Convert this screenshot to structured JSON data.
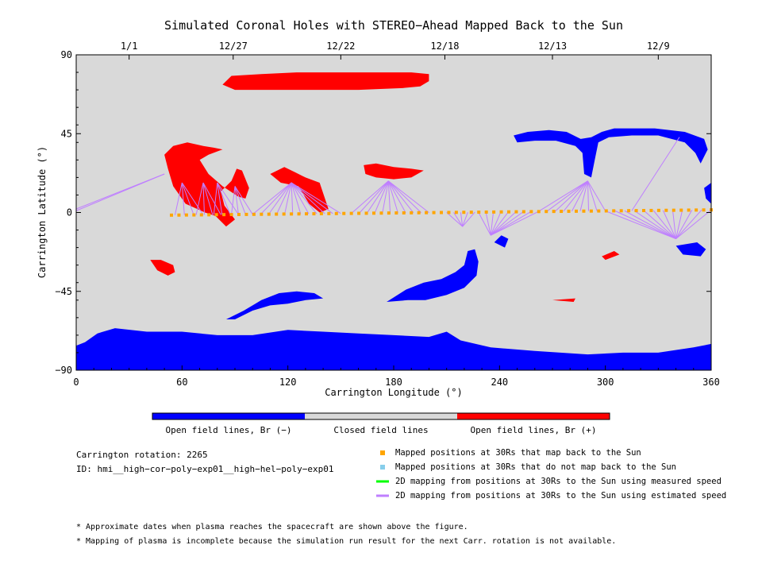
{
  "chart_data": {
    "type": "map",
    "title": "Simulated Coronal Holes with STEREO−Ahead Mapped Back to the Sun",
    "xlabel": "Carrington Longitude (°)",
    "ylabel": "Carrington Latitude (°)",
    "xlim": [
      0,
      360
    ],
    "ylim": [
      -90,
      90
    ],
    "x_ticks": [
      0,
      60,
      120,
      180,
      240,
      300,
      360
    ],
    "y_ticks": [
      -90,
      -45,
      0,
      45,
      90
    ],
    "y_tick_labels": [
      "−90",
      "−45",
      "0",
      "45",
      "90"
    ],
    "top_axis_dates": [
      {
        "lon": 30,
        "label": "1/1"
      },
      {
        "lon": 89,
        "label": "12/27"
      },
      {
        "lon": 150,
        "label": "12/22"
      },
      {
        "lon": 209,
        "label": "12/18"
      },
      {
        "lon": 270,
        "label": "12/13"
      },
      {
        "lon": 330,
        "label": "12/9"
      }
    ],
    "colors": {
      "open_negative": "#0000ff",
      "closed": "#d9d9d9",
      "open_positive": "#ff0000",
      "mapped_back": "#ffa500",
      "not_mapped": "#87ceeb",
      "measured_speed": "#00ff00",
      "estimated_speed": "#bf7fff"
    },
    "open_negative_regions": [
      [
        [
          0,
          -76
        ],
        [
          5,
          -74
        ],
        [
          12,
          -69
        ],
        [
          22,
          -66
        ],
        [
          40,
          -68
        ],
        [
          60,
          -68
        ],
        [
          80,
          -70
        ],
        [
          100,
          -70
        ],
        [
          120,
          -67
        ],
        [
          140,
          -68
        ],
        [
          160,
          -69
        ],
        [
          180,
          -70
        ],
        [
          200,
          -71
        ],
        [
          210,
          -68
        ],
        [
          218,
          -73
        ],
        [
          235,
          -77
        ],
        [
          260,
          -79
        ],
        [
          290,
          -81
        ],
        [
          310,
          -80
        ],
        [
          330,
          -80
        ],
        [
          350,
          -77
        ],
        [
          360,
          -75
        ],
        [
          360,
          -90
        ],
        [
          0,
          -90
        ]
      ],
      [
        [
          85,
          -61
        ],
        [
          95,
          -56
        ],
        [
          105,
          -50
        ],
        [
          115,
          -46
        ],
        [
          125,
          -45
        ],
        [
          135,
          -46
        ],
        [
          140,
          -49
        ],
        [
          130,
          -50
        ],
        [
          120,
          -52
        ],
        [
          110,
          -53
        ],
        [
          100,
          -56
        ],
        [
          90,
          -61
        ]
      ],
      [
        [
          176,
          -51
        ],
        [
          187,
          -44
        ],
        [
          197,
          -40
        ],
        [
          207,
          -38
        ],
        [
          215,
          -34
        ],
        [
          220,
          -30
        ],
        [
          222,
          -22
        ],
        [
          226,
          -21
        ],
        [
          228,
          -28
        ],
        [
          227,
          -36
        ],
        [
          220,
          -43
        ],
        [
          210,
          -47
        ],
        [
          198,
          -50
        ],
        [
          188,
          -50
        ]
      ],
      [
        [
          237,
          -17
        ],
        [
          241,
          -13
        ],
        [
          245,
          -15
        ],
        [
          243,
          -20
        ]
      ],
      [
        [
          340,
          -19
        ],
        [
          352,
          -17
        ],
        [
          357,
          -21
        ],
        [
          354,
          -25
        ],
        [
          344,
          -24
        ]
      ],
      [
        [
          248,
          44
        ],
        [
          256,
          46
        ],
        [
          268,
          47
        ],
        [
          278,
          46
        ],
        [
          286,
          42
        ],
        [
          292,
          43
        ],
        [
          298,
          46
        ],
        [
          305,
          48
        ],
        [
          315,
          48
        ],
        [
          328,
          48
        ],
        [
          345,
          46
        ],
        [
          356,
          42
        ],
        [
          358,
          36
        ],
        [
          354,
          28
        ],
        [
          351,
          34
        ],
        [
          345,
          40
        ],
        [
          330,
          44
        ],
        [
          315,
          44
        ],
        [
          302,
          43
        ],
        [
          296,
          40
        ],
        [
          294,
          30
        ],
        [
          292,
          20
        ],
        [
          288,
          22
        ],
        [
          287,
          34
        ],
        [
          283,
          38
        ],
        [
          272,
          41
        ],
        [
          260,
          41
        ],
        [
          250,
          40
        ]
      ],
      [
        [
          356,
          14
        ],
        [
          360,
          17
        ],
        [
          360,
          5
        ],
        [
          357,
          8
        ]
      ]
    ],
    "open_positive_regions": [
      [
        [
          83,
          73
        ],
        [
          88,
          78
        ],
        [
          105,
          79
        ],
        [
          125,
          80
        ],
        [
          150,
          80
        ],
        [
          170,
          80
        ],
        [
          190,
          80
        ],
        [
          200,
          79
        ],
        [
          200,
          75
        ],
        [
          195,
          72
        ],
        [
          185,
          71
        ],
        [
          160,
          70
        ],
        [
          140,
          70
        ],
        [
          120,
          70
        ],
        [
          105,
          70
        ],
        [
          90,
          70
        ]
      ],
      [
        [
          55,
          38
        ],
        [
          63,
          40
        ],
        [
          72,
          38
        ],
        [
          78,
          37
        ],
        [
          83,
          36
        ],
        [
          75,
          33
        ],
        [
          70,
          30
        ],
        [
          75,
          22
        ],
        [
          83,
          15
        ],
        [
          92,
          9
        ],
        [
          96,
          8
        ],
        [
          98,
          14
        ],
        [
          94,
          24
        ],
        [
          91,
          25
        ],
        [
          88,
          18
        ],
        [
          82,
          12
        ],
        [
          84,
          4
        ],
        [
          90,
          -4
        ],
        [
          85,
          -8
        ],
        [
          79,
          -2
        ],
        [
          73,
          0
        ],
        [
          62,
          5
        ],
        [
          55,
          15
        ],
        [
          52,
          25
        ],
        [
          50,
          33
        ]
      ],
      [
        [
          42,
          -27
        ],
        [
          48,
          -27
        ],
        [
          55,
          -30
        ],
        [
          56,
          -34
        ],
        [
          52,
          -36
        ],
        [
          46,
          -33
        ]
      ],
      [
        [
          110,
          22
        ],
        [
          118,
          26
        ],
        [
          124,
          23
        ],
        [
          130,
          20
        ],
        [
          138,
          17
        ],
        [
          143,
          2
        ],
        [
          138,
          0
        ],
        [
          132,
          5
        ],
        [
          126,
          15
        ],
        [
          116,
          17
        ]
      ],
      [
        [
          163,
          27
        ],
        [
          170,
          28
        ],
        [
          180,
          26
        ],
        [
          190,
          25
        ],
        [
          197,
          24
        ],
        [
          190,
          20
        ],
        [
          180,
          19
        ],
        [
          170,
          20
        ],
        [
          164,
          22
        ]
      ],
      [
        [
          298,
          -25
        ],
        [
          305,
          -22
        ],
        [
          308,
          -24
        ],
        [
          300,
          -27
        ]
      ],
      [
        [
          270,
          -50
        ],
        [
          283,
          -49
        ],
        [
          282,
          -51
        ]
      ]
    ],
    "mapped_track": {
      "lon_start": 54,
      "lon_end": 360,
      "lat_start": -1.5,
      "lat_end": 1.5,
      "count": 73
    },
    "mapping_groups": [
      {
        "foot": [
          50,
          22
        ],
        "from": 0,
        "to": 360,
        "n": 2,
        "direct": true
      },
      {
        "foot": [
          60,
          17
        ],
        "from": 56,
        "to": 72,
        "n": 4
      },
      {
        "foot": [
          72,
          17
        ],
        "from": 68,
        "to": 82,
        "n": 4
      },
      {
        "foot": [
          80,
          17
        ],
        "from": 78,
        "to": 92,
        "n": 4
      },
      {
        "foot": [
          90,
          15
        ],
        "from": 88,
        "to": 100,
        "n": 4
      },
      {
        "foot": [
          122,
          17
        ],
        "from": 100,
        "to": 150,
        "n": 12
      },
      {
        "foot": [
          177,
          18
        ],
        "from": 156,
        "to": 200,
        "n": 11
      },
      {
        "foot": [
          219,
          -8
        ],
        "from": 210,
        "to": 226,
        "n": 5
      },
      {
        "foot": [
          235,
          -13
        ],
        "from": 228,
        "to": 262,
        "n": 9
      },
      {
        "foot": [
          290,
          18
        ],
        "from": 262,
        "to": 300,
        "n": 9
      },
      {
        "foot": [
          340,
          -15
        ],
        "from": 300,
        "to": 360,
        "n": 12
      },
      {
        "foot": [
          342,
          43
        ],
        "from": 315,
        "to": 315,
        "n": 1
      }
    ],
    "colorbar": {
      "segments": [
        {
          "label": "Open field lines, Br (−)",
          "color": "#0000ff"
        },
        {
          "label": "Closed field lines",
          "color": "#d9d9d9"
        },
        {
          "label": "Open field lines, Br (+)",
          "color": "#ff0000"
        }
      ]
    },
    "legend": [
      {
        "label": "Mapped positions at 30Rs that map back to the Sun",
        "color": "#ffa500",
        "kind": "square"
      },
      {
        "label": "Mapped positions at 30Rs that do not map back to the Sun",
        "color": "#87ceeb",
        "kind": "square"
      },
      {
        "label": "2D mapping from positions at 30Rs to the Sun using measured speed",
        "color": "#00ff00",
        "kind": "line"
      },
      {
        "label": "2D mapping from positions at 30Rs to the Sun using estimated speed",
        "color": "#bf7fff",
        "kind": "line"
      }
    ]
  },
  "info": {
    "rotation": "Carrington rotation: 2265",
    "id": "ID: hmi__high−cor−poly−exp01__high−hel−poly−exp01"
  },
  "notes": [
    "* Approximate dates when plasma reaches the spacecraft are shown above the figure.",
    "* Mapping of plasma is incomplete because the simulation run result for the next Carr. rotation is not available."
  ]
}
